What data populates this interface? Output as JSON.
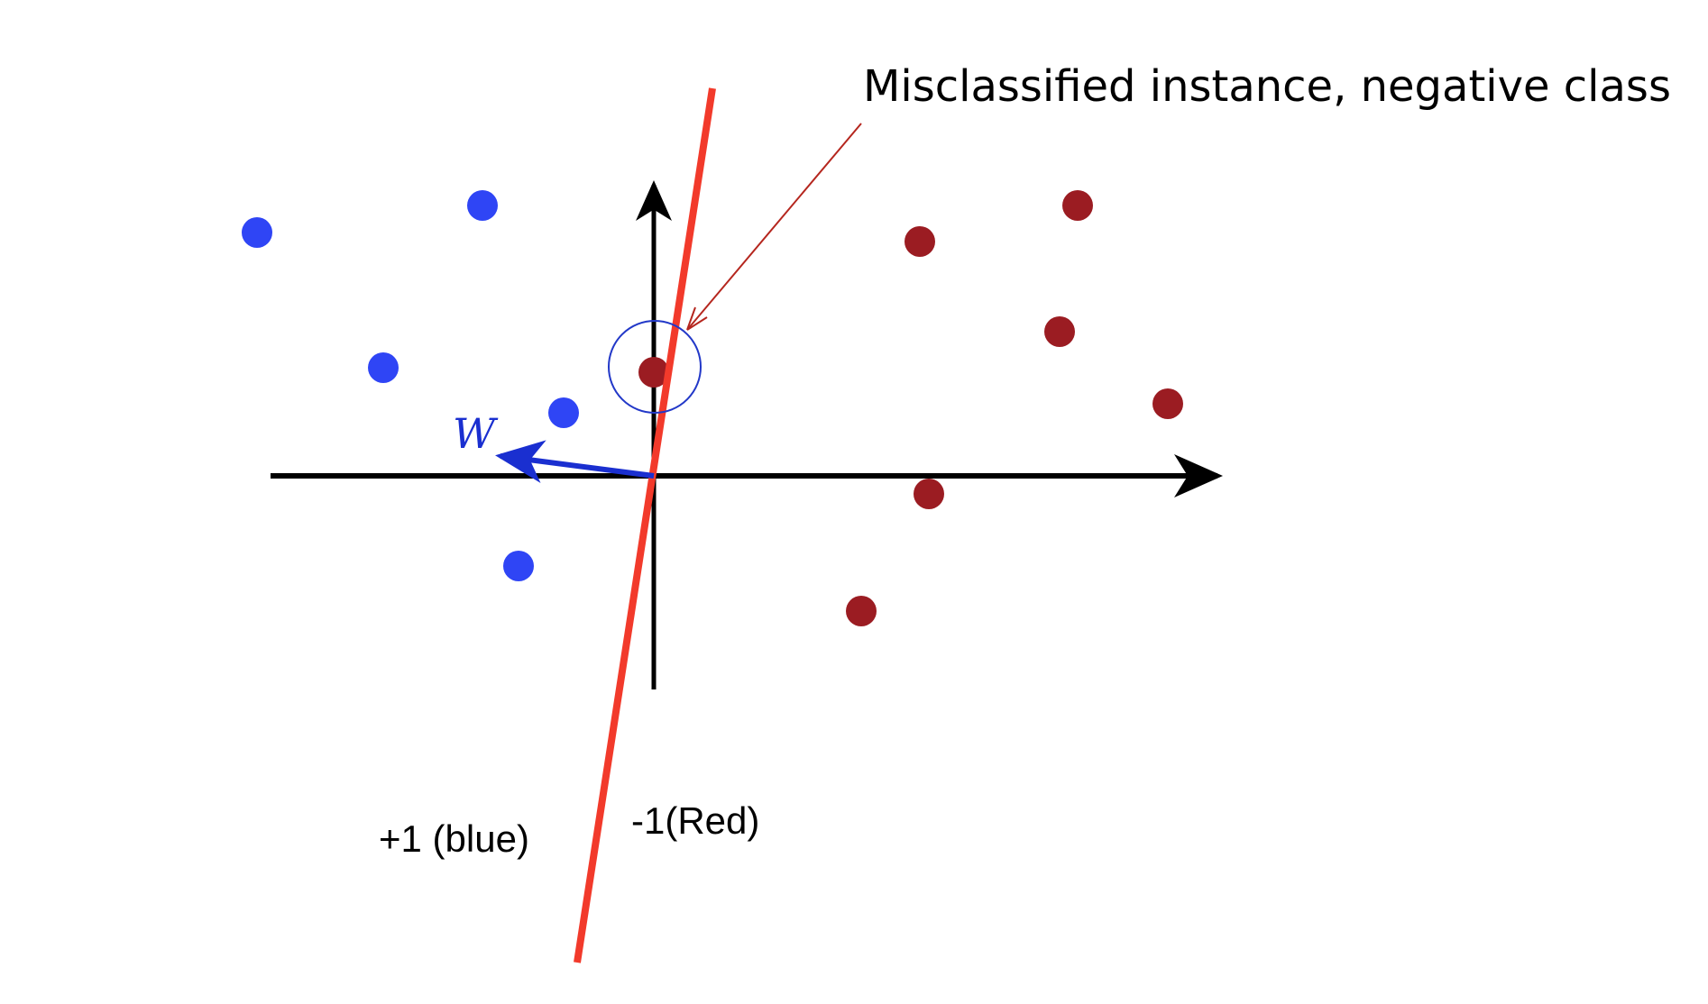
{
  "annotation": {
    "text": "Misclassified instance, negative class"
  },
  "labels": {
    "positive_class": "+1 (blue)",
    "negative_class": "-1(Red)",
    "weight_vector": "W"
  },
  "colors": {
    "positive_point": "#2f45f5",
    "negative_point": "#9b1c22",
    "decision_boundary": "#f23a2b",
    "weight_vector": "#1a2fd0",
    "annotation_arrow": "#b5261e",
    "highlight_circle": "#2238c8",
    "axes": "#000000"
  },
  "points": {
    "positive_class": [
      {
        "x": -4.4,
        "y": 2.7
      },
      {
        "x": -1.9,
        "y": 3.0
      },
      {
        "x": -3.0,
        "y": 1.2
      },
      {
        "x": -1.0,
        "y": 0.7
      },
      {
        "x": -1.5,
        "y": -1.0
      }
    ],
    "negative_class": [
      {
        "x": 4.7,
        "y": 3.0
      },
      {
        "x": 2.95,
        "y": 2.6
      },
      {
        "x": 4.5,
        "y": 1.6
      },
      {
        "x": 5.7,
        "y": 0.8
      },
      {
        "x": 3.05,
        "y": -0.2
      },
      {
        "x": 2.3,
        "y": -1.5
      },
      {
        "x": 0.0,
        "y": 1.15
      }
    ],
    "misclassified": {
      "x": 0.0,
      "y": 1.15
    }
  },
  "weight_vector": {
    "x": -1.7,
    "y": 0.22
  },
  "decision_boundary": {
    "from": {
      "x": -0.85,
      "y": -5.4
    },
    "to": {
      "x": 0.65,
      "y": 4.3
    }
  }
}
